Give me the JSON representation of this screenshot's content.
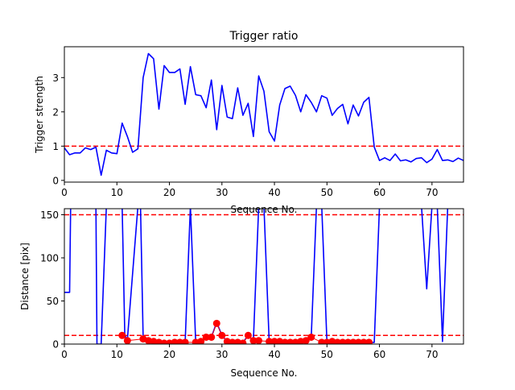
{
  "chart_data": [
    {
      "type": "line",
      "title": "Trigger ratio",
      "xlabel": "Sequence No.",
      "ylabel": "Trigger strength",
      "xlim": [
        0,
        76
      ],
      "ylim": [
        -0.05,
        3.9
      ],
      "xticks": [
        0,
        10,
        20,
        30,
        40,
        50,
        60,
        70
      ],
      "yticks": [
        0,
        1,
        2,
        3
      ],
      "grid": false,
      "hlines": [
        {
          "y": 1,
          "style": "dashed",
          "color": "#ff0000"
        }
      ],
      "series": [
        {
          "color": "#0000ff",
          "x": [
            0,
            1,
            2,
            3,
            4,
            5,
            6,
            7,
            8,
            9,
            10,
            11,
            12,
            13,
            14,
            15,
            16,
            17,
            18,
            19,
            20,
            21,
            22,
            23,
            24,
            25,
            26,
            27,
            28,
            29,
            30,
            31,
            32,
            33,
            34,
            35,
            36,
            37,
            38,
            39,
            40,
            41,
            42,
            43,
            44,
            45,
            46,
            47,
            48,
            49,
            50,
            51,
            52,
            53,
            54,
            55,
            56,
            57,
            58,
            59,
            60,
            61,
            62,
            63,
            64,
            65,
            66,
            67,
            68,
            69,
            70,
            71,
            72,
            73,
            74,
            75,
            76
          ],
          "values": [
            0.95,
            0.75,
            0.8,
            0.8,
            0.95,
            0.9,
            0.97,
            0.15,
            0.88,
            0.8,
            0.78,
            1.67,
            1.28,
            0.82,
            0.92,
            3.0,
            3.7,
            3.55,
            2.08,
            3.35,
            3.15,
            3.15,
            3.25,
            2.22,
            3.32,
            2.5,
            2.47,
            2.12,
            2.93,
            1.48,
            2.77,
            1.85,
            1.8,
            2.7,
            1.9,
            2.25,
            1.28,
            3.05,
            2.6,
            1.42,
            1.15,
            2.2,
            2.68,
            2.75,
            2.48,
            2.0,
            2.5,
            2.28,
            2.0,
            2.47,
            2.4,
            1.9,
            2.1,
            2.22,
            1.65,
            2.2,
            1.88,
            2.28,
            2.42,
            0.97,
            0.58,
            0.66,
            0.58,
            0.77,
            0.57,
            0.6,
            0.54,
            0.64,
            0.66,
            0.52,
            0.62,
            0.9,
            0.58,
            0.6,
            0.55,
            0.65,
            0.58
          ]
        }
      ]
    },
    {
      "type": "line",
      "title": "",
      "xlabel": "Sequence No.",
      "ylabel": "Distance [pix]",
      "xlim": [
        0,
        76
      ],
      "ylim": [
        0,
        157
      ],
      "xticks": [
        0,
        10,
        20,
        30,
        40,
        50,
        60,
        70
      ],
      "yticks": [
        0,
        50,
        100,
        150
      ],
      "grid": false,
      "hlines": [
        {
          "y": 150,
          "style": "dashed",
          "color": "#ff0000"
        },
        {
          "y": 10,
          "style": "dashed",
          "color": "#ff0000"
        }
      ],
      "series": [
        {
          "color": "#0000ff",
          "x": [
            0,
            1,
            1.2,
            6,
            6.2,
            7,
            8,
            11,
            11.5,
            12,
            14,
            14.5,
            15,
            16,
            17,
            18,
            19,
            20,
            21,
            22,
            23,
            24,
            25,
            26,
            27,
            28,
            29,
            30,
            31,
            32,
            33,
            34,
            35,
            36,
            37,
            38,
            39,
            40,
            41,
            42,
            43,
            44,
            45,
            46,
            47,
            48,
            49,
            50,
            51,
            52,
            53,
            54,
            55,
            56,
            57,
            58,
            59,
            60,
            61,
            62,
            63,
            64,
            65,
            66,
            67,
            68,
            69,
            70,
            71,
            72,
            73,
            74,
            75,
            76
          ],
          "values": [
            60,
            60,
            160,
            160,
            0,
            0,
            160,
            160,
            10,
            5,
            160,
            160,
            7,
            5,
            4,
            2,
            2,
            2,
            2,
            2,
            2,
            160,
            2,
            3,
            7,
            8,
            25,
            10,
            3,
            3,
            2,
            2,
            10,
            4,
            160,
            160,
            3,
            3,
            3,
            3,
            3,
            3,
            3,
            4,
            6,
            160,
            160,
            2,
            2,
            2,
            2,
            2,
            2,
            2,
            2,
            2,
            2,
            160,
            160,
            160,
            160,
            160,
            160,
            160,
            160,
            160,
            64,
            160,
            160,
            3,
            160,
            160,
            160,
            160
          ]
        },
        {
          "color": "#ff0000",
          "marker": "circle",
          "x": [
            11,
            12,
            15,
            16,
            17,
            18,
            19,
            20,
            21,
            22,
            23,
            25,
            26,
            27,
            28,
            29,
            30,
            31,
            32,
            33,
            34,
            35,
            36,
            37,
            39,
            40,
            41,
            42,
            43,
            44,
            45,
            46,
            47,
            49,
            50,
            51,
            52,
            53,
            54,
            55,
            56,
            57,
            58
          ],
          "values": [
            10,
            4,
            6,
            4,
            3,
            2,
            1,
            1,
            2,
            2,
            2,
            2,
            3,
            8,
            8,
            24,
            10,
            3,
            2,
            2,
            1,
            10,
            4,
            4,
            3,
            3,
            3,
            2,
            2,
            2,
            3,
            4,
            8,
            2,
            2,
            3,
            2,
            2,
            2,
            2,
            2,
            2,
            2
          ]
        }
      ]
    }
  ]
}
